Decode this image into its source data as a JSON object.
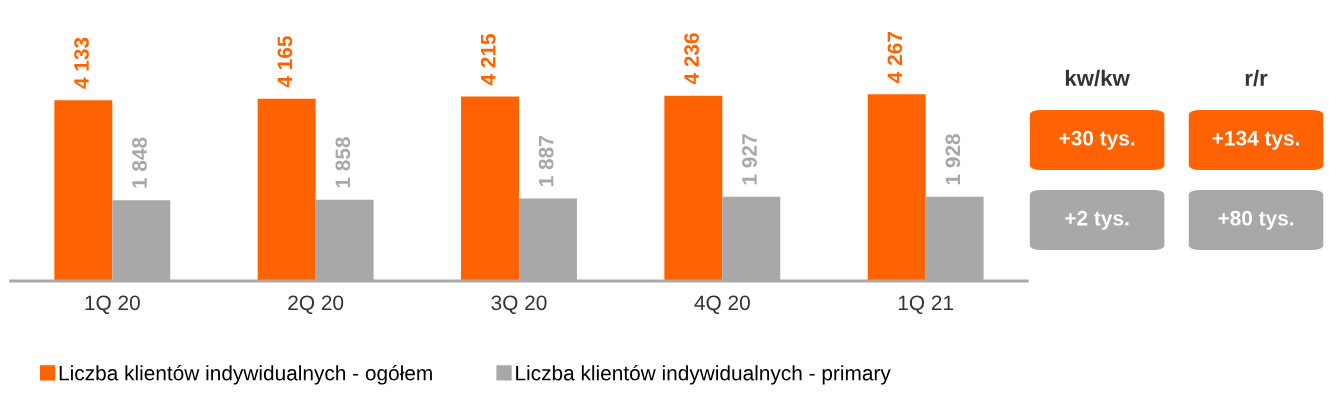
{
  "chart_data": [
    {
      "type": "bar",
      "categories": [
        "1Q 20",
        "2Q 20",
        "3Q 20",
        "4Q 20",
        "1Q 21"
      ],
      "series": [
        {
          "name": "Liczba klientów indywidualnych - ogółem",
          "color": "#ff6200",
          "values": [
            4133,
            4165,
            4215,
            4236,
            4267
          ],
          "value_labels": [
            "4 133",
            "4 165",
            "4 215",
            "4 236",
            "4 267"
          ]
        },
        {
          "name": "Liczba klientów indywidualnych - primary",
          "color": "#a8a8a8",
          "values": [
            1848,
            1858,
            1887,
            1927,
            1928
          ],
          "value_labels": [
            "1 848",
            "1 858",
            "1 887",
            "1 927",
            "1 928"
          ]
        }
      ],
      "legend": "bottom"
    },
    {
      "type": "other",
      "categories": [
        "kw/kw",
        "r/r"
      ],
      "annotations": [
        "+30 tys.",
        "+134 tys.",
        "+2 tys.",
        "+80 tys."
      ],
      "colors": [
        "#ff6200",
        "#a8a8a8"
      ]
    }
  ]
}
